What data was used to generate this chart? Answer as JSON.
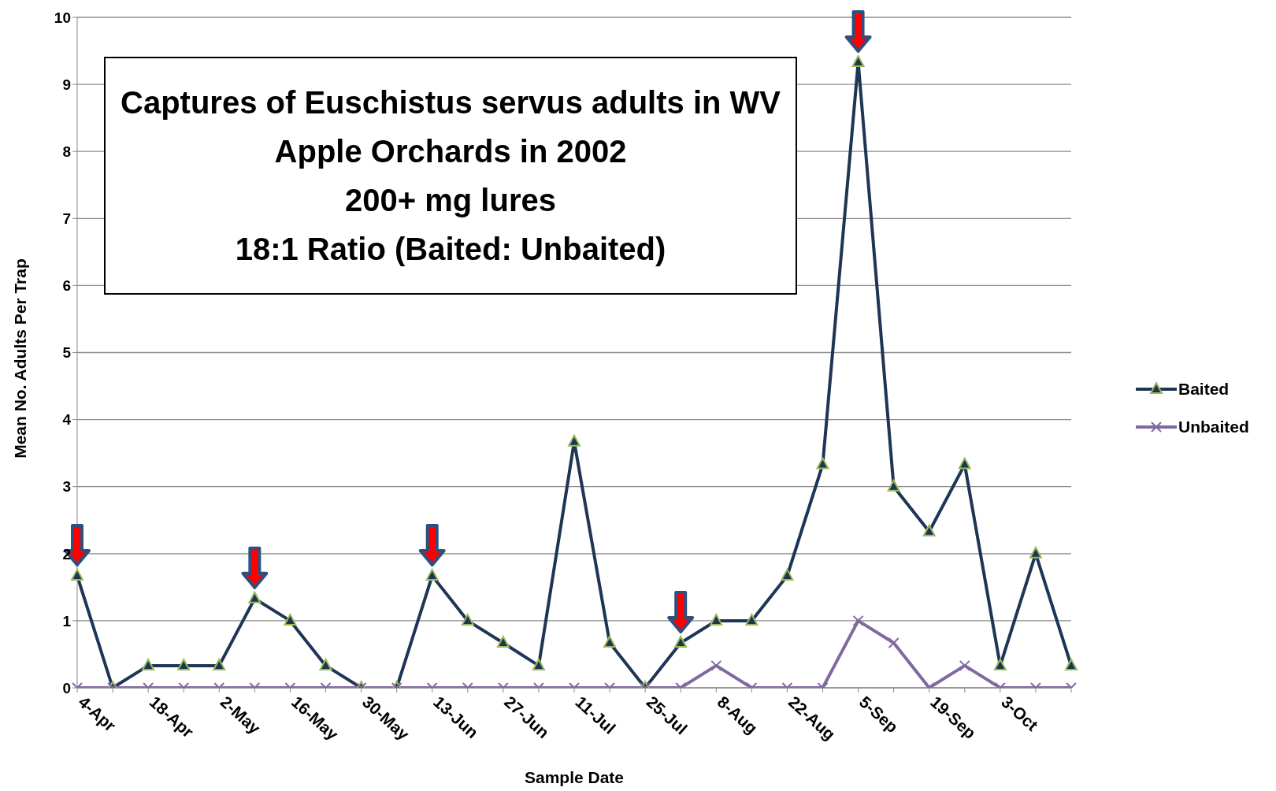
{
  "chart_data": {
    "type": "line",
    "title": "Captures of Euschistus servus adults in WV Apple Orchards in 2002",
    "annotations": [
      "200+ mg lures",
      "18:1 Ratio (Baited: Unbaited)"
    ],
    "xlabel": "Sample Date",
    "ylabel": "Mean No. Adults Per Trap",
    "categories": [
      "4-Apr",
      null,
      "18-Apr",
      null,
      "2-May",
      null,
      "16-May",
      null,
      "30-May",
      null,
      "13-Jun",
      null,
      "27-Jun",
      null,
      "11-Jul",
      null,
      "25-Jul",
      null,
      "8-Aug",
      null,
      "22-Aug",
      null,
      "5-Sep",
      null,
      "19-Sep",
      null,
      "3-Oct",
      null,
      null
    ],
    "series": [
      {
        "name": "Baited",
        "color": "#1f3556",
        "marker": "triangle",
        "values": [
          1.67,
          0,
          0.33,
          0.33,
          0.33,
          1.33,
          1,
          0.33,
          0,
          0,
          1.67,
          1,
          0.67,
          0.33,
          3.67,
          0.67,
          0,
          0.67,
          1,
          1,
          1.67,
          3.33,
          9.33,
          3,
          2.33,
          3.33,
          0.33,
          2,
          0.33
        ]
      },
      {
        "name": "Unbaited",
        "color": "#8068a0",
        "marker": "cross",
        "values": [
          0,
          0,
          0,
          0,
          0,
          0,
          0,
          0,
          0,
          0,
          0,
          0,
          0,
          0,
          0,
          0,
          0,
          0,
          0.33,
          0,
          0,
          0,
          1,
          0.67,
          0,
          0.33,
          0,
          0,
          0
        ]
      }
    ],
    "ylim": [
      0,
      10
    ],
    "yticks": [
      0,
      1,
      2,
      3,
      4,
      5,
      6,
      7,
      8,
      9,
      10
    ],
    "grid": "y",
    "legend": "right",
    "line_style": "solid"
  }
}
